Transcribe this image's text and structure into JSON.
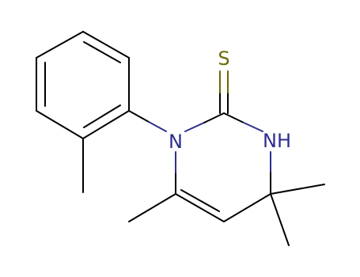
{
  "atoms": [
    {
      "label": "S"
    },
    {
      "label": "N"
    },
    {
      "label": "NH"
    }
  ]
}
